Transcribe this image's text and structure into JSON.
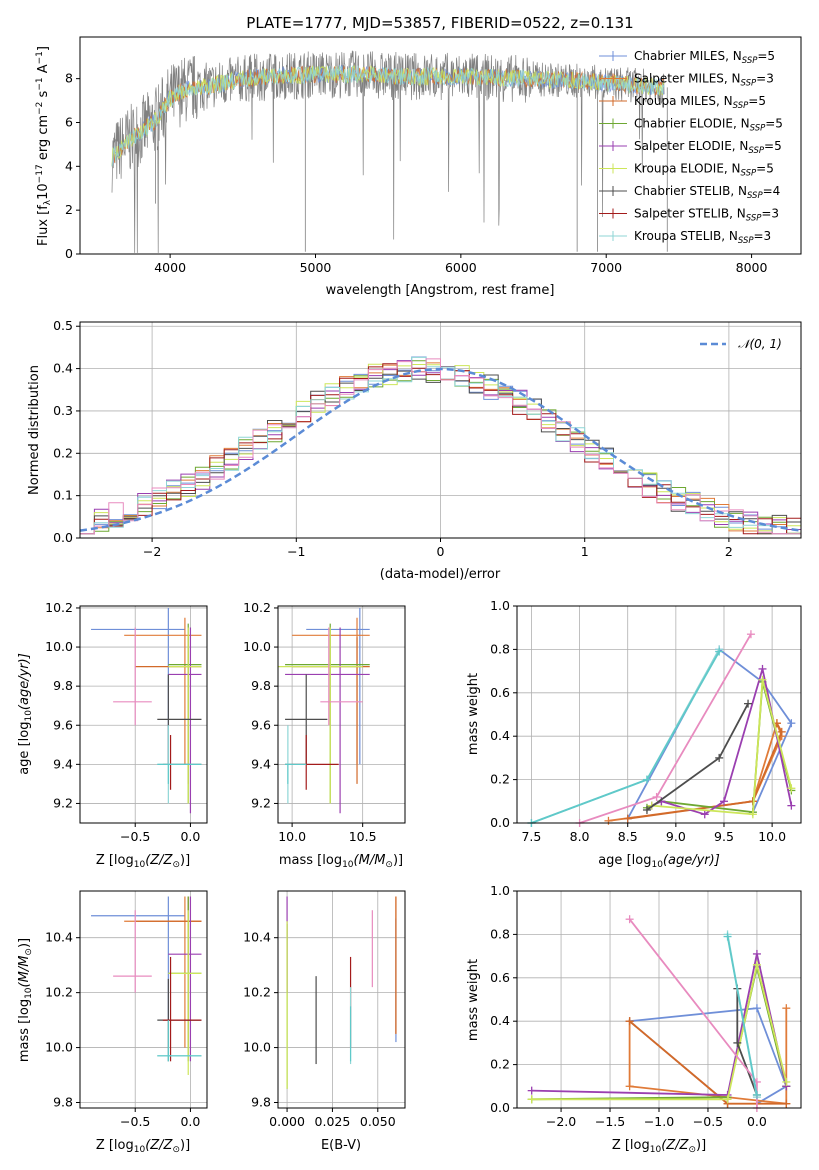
{
  "colors": {
    "Chabrier MILES": "#6f8fd8",
    "Salpeter MILES": "#e07b39",
    "Kroupa MILES": "#d26a2a",
    "Chabrier ELODIE": "#6ea832",
    "Salpeter ELODIE": "#9a3fb0",
    "Kroupa ELODIE": "#cde65a",
    "Chabrier STELIB": "#4d4d4d",
    "Salpeter STELIB": "#a31b1b",
    "Kroupa STELIB": "#8fd6d6",
    "pink": "#e88bbf",
    "teal": "#5fc9c9",
    "gaussian": "#5b8bd6",
    "grid": "#b0b0b0",
    "spectrum": "#808080"
  },
  "chart_data": [
    {
      "id": "spectrum",
      "type": "line",
      "title": "PLATE=1777, MJD=53857, FIBERID=0522, z=0.131",
      "xlabel": "wavelength [Angstrom, rest frame]",
      "ylabel_main": "Flux [f",
      "ylabel_sub": "λ",
      "ylabel_rest": "10",
      "ylabel_exp1": "−17",
      "ylabel_mid": " erg cm",
      "ylabel_exp2": "−2",
      "ylabel_s": " s",
      "ylabel_exp3": "−1",
      "ylabel_end": " A",
      "ylabel_exp4": "−1",
      "ylabel_close": "]",
      "xlim": [
        3380,
        8340
      ],
      "ylim": [
        0,
        9.9
      ],
      "xticks": [
        4000,
        5000,
        6000,
        7000,
        8000
      ],
      "yticks": [
        0,
        2,
        4,
        6,
        8
      ],
      "continuum": {
        "x": [
          3600,
          3700,
          3800,
          3900,
          4000,
          4100,
          4200,
          4300,
          4500,
          4700,
          5000,
          5300,
          5600,
          6000,
          6400,
          6800,
          7200,
          7400
        ],
        "y": [
          4.4,
          5.1,
          5.6,
          6.1,
          7.1,
          7.5,
          7.6,
          7.7,
          8.0,
          8.1,
          8.2,
          8.2,
          8.1,
          8.1,
          8.0,
          7.9,
          7.7,
          7.6
        ]
      },
      "legend": [
        {
          "name": "Chabrier MILES",
          "n": "5"
        },
        {
          "name": "Salpeter MILES",
          "n": "3"
        },
        {
          "name": "Kroupa MILES",
          "n": "5"
        },
        {
          "name": "Chabrier ELODIE",
          "n": "5"
        },
        {
          "name": "Salpeter ELODIE",
          "n": "5"
        },
        {
          "name": "Kroupa ELODIE",
          "n": "5"
        },
        {
          "name": "Chabrier STELIB",
          "n": "4"
        },
        {
          "name": "Salpeter STELIB",
          "n": "3"
        },
        {
          "name": "Kroupa STELIB",
          "n": "3"
        }
      ],
      "legend_prefix": "N",
      "legend_sub": "SSP",
      "legend_eq": "="
    },
    {
      "id": "histogram",
      "type": "line",
      "xlabel": "(data-model)/error",
      "ylabel": "Normed distribution",
      "xlim": [
        -2.5,
        2.5
      ],
      "ylim": [
        0,
        0.51
      ],
      "xticks": [
        -2,
        -1,
        0,
        1,
        2
      ],
      "yticks": [
        0.0,
        0.1,
        0.2,
        0.3,
        0.4,
        0.5
      ],
      "legend_label": "𝒩(0, 1)",
      "gaussian": {
        "mu": 0,
        "sigma": 1
      },
      "bin_width": 0.1
    },
    {
      "id": "age-vs-Z",
      "type": "scatter",
      "xlabel": "Z [log",
      "xlabel_sub": "10",
      "xlabel_rest": "(Z/Z",
      "xlabel_sun": "⊙",
      "xlabel_close": ")]",
      "ylabel": "age  [log",
      "ylabel_sub": "10",
      "ylabel_rest": "(age/yr)]",
      "xlim": [
        -1.0,
        0.15
      ],
      "ylim": [
        9.1,
        10.21
      ],
      "xticks": [
        -0.5,
        0.0
      ],
      "yticks": [
        9.2,
        9.4,
        9.6,
        9.8,
        10.0,
        10.2
      ]
    },
    {
      "id": "age-vs-mass",
      "type": "scatter",
      "xlabel": "mass [log",
      "xlabel_sub": "10",
      "xlabel_rest": "(M/M",
      "xlabel_sun": "⊙",
      "xlabel_close": ")]",
      "xlim": [
        9.9,
        10.8
      ],
      "ylim": [
        9.1,
        10.21
      ],
      "xticks": [
        10.0,
        10.5
      ],
      "yticks": [
        9.2,
        9.4,
        9.6,
        9.8,
        10.0,
        10.2
      ]
    },
    {
      "id": "massweight-vs-age",
      "type": "line",
      "xlabel": "age  [log",
      "xlabel_sub": "10",
      "xlabel_rest": "(age/yr)]",
      "ylabel": "mass weight",
      "xlim": [
        7.35,
        10.3
      ],
      "ylim": [
        0,
        1.0
      ],
      "xticks": [
        7.5,
        8.0,
        8.5,
        9.0,
        9.5,
        10.0
      ],
      "yticks": [
        0.0,
        0.2,
        0.4,
        0.6,
        0.8,
        1.0
      ]
    },
    {
      "id": "mass-vs-Z",
      "type": "scatter",
      "xlabel": "Z [log",
      "xlabel_sub": "10",
      "xlabel_rest": "(Z/Z",
      "xlabel_sun": "⊙",
      "xlabel_close": ")]",
      "ylabel": "mass [log",
      "ylabel_sub": "10",
      "ylabel_rest": "(M/M",
      "ylabel_sun": "⊙",
      "ylabel_close": ")]",
      "xlim": [
        -1.0,
        0.15
      ],
      "ylim": [
        9.78,
        10.57
      ],
      "xticks": [
        -0.5,
        0.0
      ],
      "yticks": [
        9.8,
        10.0,
        10.2,
        10.4
      ]
    },
    {
      "id": "mass-vs-EBV",
      "type": "scatter",
      "xlabel": "E(B-V)",
      "xlim": [
        -0.005,
        0.065
      ],
      "ylim": [
        9.78,
        10.57
      ],
      "xticks": [
        0.0,
        0.025,
        0.05
      ],
      "xticklabels": [
        "0.000",
        "0.025",
        "0.050"
      ],
      "yticks": [
        9.8,
        10.0,
        10.2,
        10.4
      ]
    },
    {
      "id": "massweight-vs-Z",
      "type": "line",
      "xlabel": "Z [log",
      "xlabel_sub": "10",
      "xlabel_rest": "(Z/Z",
      "xlabel_sun": "⊙",
      "xlabel_close": ")]",
      "ylabel": "mass weight",
      "xlim": [
        -2.45,
        0.45
      ],
      "ylim": [
        0,
        1.0
      ],
      "xticks": [
        -2.0,
        -1.5,
        -1.0,
        -0.5,
        0.0
      ],
      "yticks": [
        0.0,
        0.2,
        0.4,
        0.6,
        0.8,
        1.0
      ]
    }
  ],
  "models": [
    {
      "name": "Chabrier MILES",
      "Z": -0.2,
      "Zerr": [
        -0.9,
        -0.05
      ],
      "age": 10.09,
      "ageErr": [
        9.4,
        10.2
      ],
      "mass": 10.48,
      "massErr": [
        10.1,
        10.55
      ],
      "ebv": 0.06,
      "ebvErr": [
        10.02,
        10.47
      ],
      "w_age": [
        [
          8.5,
          0.02
        ],
        [
          9.45,
          0.8
        ],
        [
          9.9,
          0.65
        ],
        [
          10.2,
          0.46
        ],
        [
          9.8,
          0.05
        ]
      ],
      "w_Z": [
        [
          -0.3,
          0.02
        ],
        [
          -1.3,
          0.4
        ],
        [
          0.0,
          0.46
        ],
        [
          0.3,
          0.1
        ],
        [
          0.0,
          0.02
        ]
      ]
    },
    {
      "name": "Salpeter MILES",
      "Z": -0.05,
      "Zerr": [
        -0.6,
        0.1
      ],
      "age": 10.06,
      "ageErr": [
        9.4,
        10.15
      ],
      "mass": 10.46,
      "massErr": [
        10.0,
        10.55
      ],
      "ebv": 0.06,
      "ebvErr": [
        10.05,
        10.55
      ],
      "w_age": [
        [
          8.3,
          0.01
        ],
        [
          9.8,
          0.1
        ],
        [
          10.05,
          0.46
        ],
        [
          10.1,
          0.4
        ],
        [
          9.8,
          0.1
        ]
      ],
      "w_Z": [
        [
          -0.3,
          0.02
        ],
        [
          -1.3,
          0.4
        ],
        [
          -1.3,
          0.1
        ],
        [
          0.3,
          0.02
        ],
        [
          0.3,
          0.46
        ]
      ]
    },
    {
      "name": "Kroupa MILES",
      "Z": -0.02,
      "Zerr": [
        -0.5,
        0.1
      ],
      "age": 9.9,
      "ageErr": [
        9.3,
        10.05
      ],
      "mass": 10.46,
      "massErr": [
        10.0,
        10.55
      ],
      "ebv": 0.06,
      "ebvErr": [
        10.05,
        10.55
      ],
      "w_age": [
        [
          8.5,
          0.02
        ],
        [
          9.8,
          0.1
        ],
        [
          10.1,
          0.42
        ],
        [
          10.05,
          0.46
        ]
      ],
      "w_Z": [
        [
          -1.3,
          0.4
        ],
        [
          -0.3,
          0.02
        ],
        [
          0.3,
          0.02
        ]
      ]
    },
    {
      "name": "Chabrier ELODIE",
      "Z": -0.02,
      "Zerr": [
        -0.2,
        0.1
      ],
      "age": 9.91,
      "ageErr": [
        9.2,
        10.12
      ],
      "mass": 10.27,
      "massErr": [
        9.95,
        10.55
      ],
      "ebv": 0.0,
      "ebvErr": [
        9.85,
        10.45
      ],
      "w_age": [
        [
          8.7,
          0.07
        ],
        [
          8.85,
          0.1
        ],
        [
          9.8,
          0.05
        ],
        [
          9.9,
          0.65
        ],
        [
          10.2,
          0.15
        ]
      ],
      "w_Z": [
        [
          -2.3,
          0.04
        ],
        [
          -0.3,
          0.05
        ],
        [
          0.0,
          0.65
        ],
        [
          0.3,
          0.1
        ]
      ]
    },
    {
      "name": "Salpeter ELODIE",
      "Z": 0.0,
      "Zerr": [
        -0.2,
        0.1
      ],
      "age": 9.86,
      "ageErr": [
        9.15,
        10.1
      ],
      "mass": 10.34,
      "massErr": [
        9.95,
        10.55
      ],
      "ebv": 0.0,
      "ebvErr": [
        10.2,
        10.55
      ],
      "w_age": [
        [
          8.75,
          0.08
        ],
        [
          8.85,
          0.1
        ],
        [
          9.3,
          0.04
        ],
        [
          9.5,
          0.1
        ],
        [
          9.9,
          0.71
        ],
        [
          10.2,
          0.08
        ]
      ],
      "w_Z": [
        [
          -2.3,
          0.08
        ],
        [
          -0.3,
          0.06
        ],
        [
          0.0,
          0.71
        ],
        [
          0.3,
          0.1
        ]
      ]
    },
    {
      "name": "Kroupa ELODIE",
      "Z": -0.02,
      "Zerr": [
        -0.2,
        0.1
      ],
      "age": 9.9,
      "ageErr": [
        9.2,
        10.1
      ],
      "mass": 10.27,
      "massErr": [
        9.9,
        10.5
      ],
      "ebv": 0.0,
      "ebvErr": [
        9.85,
        10.46
      ],
      "w_age": [
        [
          8.75,
          0.08
        ],
        [
          9.8,
          0.04
        ],
        [
          9.9,
          0.66
        ],
        [
          10.2,
          0.16
        ]
      ],
      "w_Z": [
        [
          -2.3,
          0.04
        ],
        [
          -0.3,
          0.04
        ],
        [
          0.0,
          0.66
        ],
        [
          0.3,
          0.12
        ]
      ]
    },
    {
      "name": "Chabrier STELIB",
      "Z": -0.2,
      "Zerr": [
        -0.3,
        0.1
      ],
      "age": 9.63,
      "ageErr": [
        9.4,
        9.86
      ],
      "mass": 10.1,
      "massErr": [
        9.95,
        10.25
      ],
      "ebv": 0.016,
      "ebvErr": [
        9.94,
        10.26
      ],
      "w_age": [
        [
          8.7,
          0.06
        ],
        [
          9.45,
          0.3
        ],
        [
          9.75,
          0.55
        ]
      ],
      "w_Z": [
        [
          -0.2,
          0.55
        ],
        [
          -0.2,
          0.3
        ],
        [
          0.0,
          0.06
        ]
      ]
    },
    {
      "name": "Salpeter STELIB",
      "Z": -0.18,
      "Zerr": [
        -0.25,
        0.1
      ],
      "age": 9.4,
      "ageErr": [
        9.27,
        9.55
      ],
      "mass": 10.1,
      "massErr": [
        9.95,
        10.33
      ],
      "ebv": 0.035,
      "ebvErr": [
        10.0,
        10.33
      ],
      "w_age": [],
      "w_Z": []
    },
    {
      "name": "Kroupa STELIB",
      "Z": -0.2,
      "Zerr": [
        -0.3,
        0.1
      ],
      "age": 9.4,
      "ageErr": [
        9.2,
        9.6
      ],
      "mass": 9.97,
      "massErr": [
        9.95,
        10.0
      ],
      "ebv": 0.035,
      "ebvErr": [
        9.94,
        10.22
      ],
      "w_age": [
        [
          7.5,
          0.0
        ],
        [
          8.7,
          0.2
        ],
        [
          9.45,
          0.8
        ]
      ],
      "w_Z": [
        [
          -0.3,
          0.8
        ],
        [
          0.0,
          0.05
        ]
      ]
    },
    {
      "name": "pink",
      "Z": -0.5,
      "Zerr": [
        -0.7,
        -0.35
      ],
      "age": 9.72,
      "ageErr": [
        9.6,
        10.1
      ],
      "mass": 10.26,
      "massErr": [
        10.2,
        10.5
      ],
      "ebv": 0.047,
      "ebvErr": [
        10.22,
        10.5
      ],
      "w_age": [
        [
          8.0,
          0.0
        ],
        [
          8.8,
          0.12
        ],
        [
          9.78,
          0.87
        ]
      ],
      "w_Z": [
        [
          -1.3,
          0.87
        ],
        [
          0.0,
          0.12
        ],
        [
          0.0,
          0.0
        ]
      ]
    },
    {
      "name": "teal",
      "Z": -0.2,
      "Zerr": [
        -0.3,
        0.1
      ],
      "age": 9.4,
      "ageErr": [
        9.3,
        9.4
      ],
      "mass": 9.97,
      "massErr": [
        9.95,
        10.1
      ],
      "ebv": 0.035,
      "ebvErr": [
        9.95,
        10.15
      ],
      "w_age": [
        [
          7.5,
          0.0
        ],
        [
          8.7,
          0.2
        ],
        [
          9.45,
          0.79
        ]
      ],
      "w_Z": [
        [
          -0.3,
          0.79
        ],
        [
          0.0,
          0.06
        ]
      ]
    }
  ]
}
